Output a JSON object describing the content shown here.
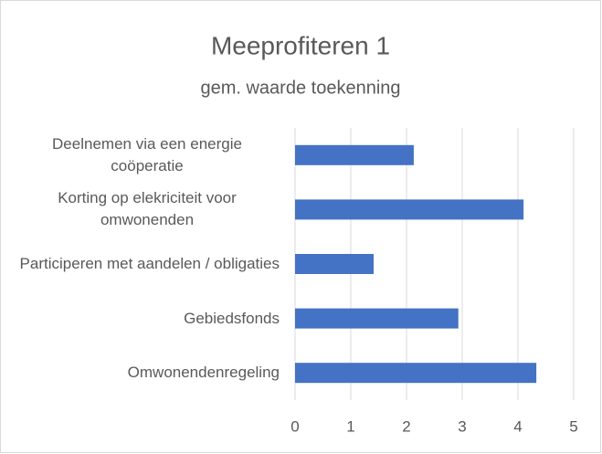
{
  "chart_data": {
    "type": "bar",
    "orientation": "horizontal",
    "title": "Meeprofiteren 1",
    "subtitle": "gem. waarde toekenning",
    "categories": [
      "Deelnemen via een energie coöperatie",
      "Korting op elekriciteit voor omwonenden",
      "Participeren met aandelen / obligaties",
      "Gebiedsfonds",
      "Omwonendenregeling"
    ],
    "values": [
      2.13,
      4.1,
      1.41,
      2.93,
      4.33
    ],
    "color": "#4472c4",
    "xlim": [
      0,
      5
    ],
    "xticks": [
      0,
      1,
      2,
      3,
      4,
      5
    ],
    "grid": true
  }
}
